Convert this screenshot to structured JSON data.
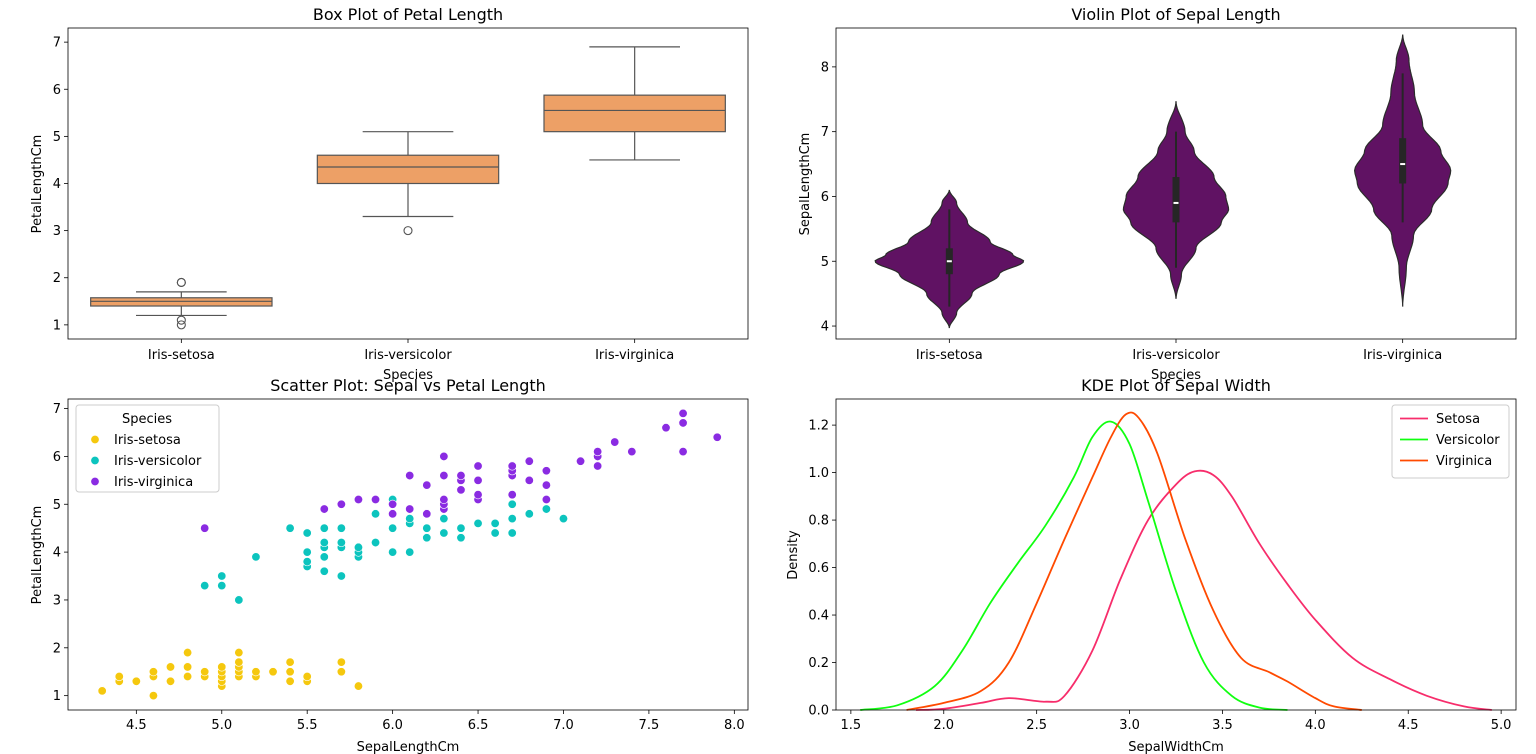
{
  "chart_data": [
    {
      "type": "box",
      "title": "Box Plot of Petal Length",
      "xlabel": "Species",
      "ylabel": "PetalLengthCm",
      "categories": [
        "Iris-setosa",
        "Iris-versicolor",
        "Iris-virginica"
      ],
      "ylim": [
        0.7,
        7.3
      ],
      "yticks": [
        1,
        2,
        3,
        4,
        5,
        6,
        7
      ],
      "box_color": "#eda066",
      "boxes": [
        {
          "whisker_low": 1.2,
          "q1": 1.4,
          "median": 1.5,
          "q3": 1.575,
          "whisker_high": 1.7,
          "outliers": [
            1.0,
            1.1,
            1.9,
            1.9
          ]
        },
        {
          "whisker_low": 3.3,
          "q1": 4.0,
          "median": 4.35,
          "q3": 4.6,
          "whisker_high": 5.1,
          "outliers": [
            3.0
          ]
        },
        {
          "whisker_low": 4.5,
          "q1": 5.1,
          "median": 5.55,
          "q3": 5.875,
          "whisker_high": 6.9,
          "outliers": []
        }
      ]
    },
    {
      "type": "violin",
      "title": "Violin Plot of Sepal Length",
      "xlabel": "Species",
      "ylabel": "SepalLengthCm",
      "categories": [
        "Iris-setosa",
        "Iris-versicolor",
        "Iris-virginica"
      ],
      "ylim": [
        3.8,
        8.6
      ],
      "yticks": [
        4,
        5,
        6,
        7,
        8
      ],
      "violin_color": "#601263",
      "violins": [
        {
          "min": 3.97,
          "max": 6.1,
          "q1": 4.8,
          "median": 5.0,
          "q3": 5.2,
          "whisker_low": 4.3,
          "whisker_high": 5.8,
          "profile": [
            [
              3.97,
              0.0
            ],
            [
              4.2,
              0.08
            ],
            [
              4.5,
              0.25
            ],
            [
              4.8,
              0.55
            ],
            [
              5.0,
              0.82
            ],
            [
              5.1,
              0.7
            ],
            [
              5.3,
              0.45
            ],
            [
              5.6,
              0.2
            ],
            [
              5.9,
              0.08
            ],
            [
              6.1,
              0.0
            ]
          ]
        },
        {
          "min": 4.42,
          "max": 7.47,
          "q1": 5.6,
          "median": 5.9,
          "q3": 6.3,
          "whisker_low": 4.9,
          "whisker_high": 7.0,
          "profile": [
            [
              4.42,
              0.0
            ],
            [
              4.8,
              0.06
            ],
            [
              5.2,
              0.22
            ],
            [
              5.6,
              0.5
            ],
            [
              5.8,
              0.58
            ],
            [
              6.0,
              0.55
            ],
            [
              6.3,
              0.42
            ],
            [
              6.7,
              0.2
            ],
            [
              7.0,
              0.1
            ],
            [
              7.47,
              0.0
            ]
          ]
        },
        {
          "min": 4.3,
          "max": 8.5,
          "q1": 6.2,
          "median": 6.5,
          "q3": 6.9,
          "whisker_low": 5.6,
          "whisker_high": 7.9,
          "profile": [
            [
              4.3,
              0.0
            ],
            [
              4.9,
              0.04
            ],
            [
              5.4,
              0.12
            ],
            [
              5.8,
              0.32
            ],
            [
              6.2,
              0.5
            ],
            [
              6.4,
              0.53
            ],
            [
              6.7,
              0.42
            ],
            [
              7.1,
              0.22
            ],
            [
              7.6,
              0.13
            ],
            [
              8.1,
              0.07
            ],
            [
              8.5,
              0.0
            ]
          ]
        }
      ]
    },
    {
      "type": "scatter",
      "title": "Scatter Plot: Sepal vs Petal Length",
      "xlabel": "SepalLengthCm",
      "ylabel": "PetalLengthCm",
      "xlim": [
        4.1,
        8.08
      ],
      "ylim": [
        0.7,
        7.2
      ],
      "xticks": [
        "4.5",
        "5.0",
        "5.5",
        "6.0",
        "6.5",
        "7.0",
        "7.5",
        "8.0"
      ],
      "yticks": [
        1,
        2,
        3,
        4,
        5,
        6,
        7
      ],
      "legend": {
        "title": "Species",
        "position": "upper left"
      },
      "series": [
        {
          "name": "Iris-setosa",
          "color": "#f5c80e",
          "points": [
            [
              4.3,
              1.1
            ],
            [
              4.4,
              1.3
            ],
            [
              4.4,
              1.4
            ],
            [
              4.5,
              1.3
            ],
            [
              4.6,
              1.0
            ],
            [
              4.6,
              1.4
            ],
            [
              4.6,
              1.5
            ],
            [
              4.7,
              1.3
            ],
            [
              4.7,
              1.6
            ],
            [
              4.8,
              1.4
            ],
            [
              4.8,
              1.6
            ],
            [
              4.8,
              1.9
            ],
            [
              4.9,
              1.4
            ],
            [
              4.9,
              1.5
            ],
            [
              5.0,
              1.2
            ],
            [
              5.0,
              1.3
            ],
            [
              5.0,
              1.4
            ],
            [
              5.0,
              1.5
            ],
            [
              5.0,
              1.6
            ],
            [
              5.1,
              1.4
            ],
            [
              5.1,
              1.5
            ],
            [
              5.1,
              1.6
            ],
            [
              5.1,
              1.7
            ],
            [
              5.1,
              1.9
            ],
            [
              5.2,
              1.4
            ],
            [
              5.2,
              1.5
            ],
            [
              5.3,
              1.5
            ],
            [
              5.4,
              1.3
            ],
            [
              5.4,
              1.5
            ],
            [
              5.4,
              1.7
            ],
            [
              5.5,
              1.3
            ],
            [
              5.5,
              1.4
            ],
            [
              5.7,
              1.5
            ],
            [
              5.7,
              1.7
            ],
            [
              5.8,
              1.2
            ]
          ]
        },
        {
          "name": "Iris-versicolor",
          "color": "#0cc4be",
          "points": [
            [
              4.9,
              3.3
            ],
            [
              5.0,
              3.3
            ],
            [
              5.0,
              3.5
            ],
            [
              5.1,
              3.0
            ],
            [
              5.2,
              3.9
            ],
            [
              5.4,
              4.5
            ],
            [
              5.5,
              3.7
            ],
            [
              5.5,
              3.8
            ],
            [
              5.5,
              4.0
            ],
            [
              5.5,
              4.4
            ],
            [
              5.6,
              3.6
            ],
            [
              5.6,
              3.9
            ],
            [
              5.6,
              4.1
            ],
            [
              5.6,
              4.2
            ],
            [
              5.6,
              4.5
            ],
            [
              5.7,
              3.5
            ],
            [
              5.7,
              4.1
            ],
            [
              5.7,
              4.2
            ],
            [
              5.7,
              4.5
            ],
            [
              5.8,
              3.9
            ],
            [
              5.8,
              4.0
            ],
            [
              5.8,
              4.1
            ],
            [
              5.9,
              4.2
            ],
            [
              5.9,
              4.8
            ],
            [
              6.0,
              4.0
            ],
            [
              6.0,
              4.5
            ],
            [
              6.0,
              5.1
            ],
            [
              6.1,
              4.0
            ],
            [
              6.1,
              4.6
            ],
            [
              6.1,
              4.7
            ],
            [
              6.2,
              4.3
            ],
            [
              6.2,
              4.5
            ],
            [
              6.3,
              4.4
            ],
            [
              6.3,
              4.7
            ],
            [
              6.3,
              4.9
            ],
            [
              6.4,
              4.3
            ],
            [
              6.4,
              4.5
            ],
            [
              6.5,
              4.6
            ],
            [
              6.6,
              4.4
            ],
            [
              6.6,
              4.6
            ],
            [
              6.7,
              4.4
            ],
            [
              6.7,
              4.7
            ],
            [
              6.7,
              5.0
            ],
            [
              6.8,
              4.8
            ],
            [
              6.9,
              4.9
            ],
            [
              7.0,
              4.7
            ]
          ]
        },
        {
          "name": "Iris-virginica",
          "color": "#8a2be2",
          "points": [
            [
              4.9,
              4.5
            ],
            [
              5.6,
              4.9
            ],
            [
              5.7,
              5.0
            ],
            [
              5.8,
              5.1
            ],
            [
              5.9,
              5.1
            ],
            [
              6.0,
              4.8
            ],
            [
              6.0,
              5.0
            ],
            [
              6.1,
              4.9
            ],
            [
              6.1,
              5.6
            ],
            [
              6.2,
              4.8
            ],
            [
              6.2,
              5.4
            ],
            [
              6.3,
              4.9
            ],
            [
              6.3,
              5.0
            ],
            [
              6.3,
              5.1
            ],
            [
              6.3,
              5.6
            ],
            [
              6.3,
              6.0
            ],
            [
              6.4,
              5.3
            ],
            [
              6.4,
              5.5
            ],
            [
              6.4,
              5.6
            ],
            [
              6.5,
              5.1
            ],
            [
              6.5,
              5.2
            ],
            [
              6.5,
              5.5
            ],
            [
              6.5,
              5.8
            ],
            [
              6.7,
              5.2
            ],
            [
              6.7,
              5.6
            ],
            [
              6.7,
              5.7
            ],
            [
              6.7,
              5.8
            ],
            [
              6.8,
              5.5
            ],
            [
              6.8,
              5.9
            ],
            [
              6.9,
              5.1
            ],
            [
              6.9,
              5.4
            ],
            [
              6.9,
              5.7
            ],
            [
              7.1,
              5.9
            ],
            [
              7.2,
              5.8
            ],
            [
              7.2,
              6.0
            ],
            [
              7.2,
              6.1
            ],
            [
              7.3,
              6.3
            ],
            [
              7.4,
              6.1
            ],
            [
              7.6,
              6.6
            ],
            [
              7.7,
              6.1
            ],
            [
              7.7,
              6.7
            ],
            [
              7.7,
              6.9
            ],
            [
              7.9,
              6.4
            ]
          ]
        }
      ]
    },
    {
      "type": "line",
      "title": "KDE Plot of Sepal Width",
      "xlabel": "SepalWidthCm",
      "ylabel": "Density",
      "xlim": [
        1.42,
        5.08
      ],
      "ylim": [
        0.0,
        1.31
      ],
      "xticks": [
        "1.5",
        "2.0",
        "2.5",
        "3.0",
        "3.5",
        "4.0",
        "4.5",
        "5.0"
      ],
      "yticks": [
        "0.0",
        "0.2",
        "0.4",
        "0.6",
        "0.8",
        "1.0",
        "1.2"
      ],
      "legend": {
        "position": "upper right"
      },
      "series": [
        {
          "name": "Setosa",
          "color": "#f72d6b",
          "points": [
            [
              1.85,
              0.0
            ],
            [
              2.0,
              0.005
            ],
            [
              2.2,
              0.03
            ],
            [
              2.35,
              0.05
            ],
            [
              2.55,
              0.035
            ],
            [
              2.65,
              0.06
            ],
            [
              2.8,
              0.25
            ],
            [
              2.95,
              0.55
            ],
            [
              3.1,
              0.8
            ],
            [
              3.25,
              0.95
            ],
            [
              3.35,
              1.005
            ],
            [
              3.45,
              0.99
            ],
            [
              3.55,
              0.9
            ],
            [
              3.7,
              0.7
            ],
            [
              3.85,
              0.53
            ],
            [
              4.0,
              0.38
            ],
            [
              4.2,
              0.22
            ],
            [
              4.4,
              0.13
            ],
            [
              4.6,
              0.06
            ],
            [
              4.8,
              0.015
            ],
            [
              4.95,
              0.0
            ]
          ]
        },
        {
          "name": "Versicolor",
          "color": "#10ff10",
          "points": [
            [
              1.55,
              0.0
            ],
            [
              1.75,
              0.02
            ],
            [
              1.95,
              0.1
            ],
            [
              2.1,
              0.25
            ],
            [
              2.25,
              0.45
            ],
            [
              2.4,
              0.62
            ],
            [
              2.55,
              0.78
            ],
            [
              2.7,
              0.98
            ],
            [
              2.8,
              1.15
            ],
            [
              2.9,
              1.215
            ],
            [
              3.0,
              1.12
            ],
            [
              3.1,
              0.88
            ],
            [
              3.25,
              0.5
            ],
            [
              3.4,
              0.2
            ],
            [
              3.55,
              0.06
            ],
            [
              3.7,
              0.01
            ],
            [
              3.85,
              0.0
            ]
          ]
        },
        {
          "name": "Virginica",
          "color": "#ff4a00",
          "points": [
            [
              1.8,
              0.0
            ],
            [
              2.0,
              0.03
            ],
            [
              2.2,
              0.08
            ],
            [
              2.35,
              0.2
            ],
            [
              2.5,
              0.45
            ],
            [
              2.65,
              0.72
            ],
            [
              2.8,
              0.98
            ],
            [
              2.9,
              1.15
            ],
            [
              2.98,
              1.245
            ],
            [
              3.05,
              1.23
            ],
            [
              3.15,
              1.08
            ],
            [
              3.3,
              0.72
            ],
            [
              3.45,
              0.42
            ],
            [
              3.6,
              0.22
            ],
            [
              3.75,
              0.16
            ],
            [
              3.85,
              0.12
            ],
            [
              4.0,
              0.05
            ],
            [
              4.1,
              0.015
            ],
            [
              4.25,
              0.0
            ]
          ]
        }
      ]
    }
  ]
}
